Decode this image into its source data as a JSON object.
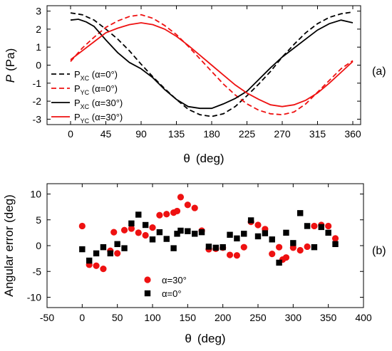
{
  "chart_data": [
    {
      "type": "line",
      "panel_label": "(a)",
      "ylabel_italic": "P",
      "ylabel_rest": "(Pa)",
      "xlabel_sym": "θ",
      "xlabel_unit": "(deg)",
      "xlim": [
        -30,
        370
      ],
      "ylim": [
        -3.3,
        3.3
      ],
      "xticks": [
        "0",
        "45",
        "90",
        "135",
        "180",
        "225",
        "270",
        "315",
        "360"
      ],
      "yticks": [
        "-3",
        "-2",
        "-1",
        "0",
        "1",
        "2",
        "3"
      ],
      "legend_position": "left",
      "series": [
        {
          "name_main": "P",
          "name_sub": "XC",
          "name_rest": " (α=0°)",
          "color": "#000000",
          "dash": true,
          "x": [
            0,
            15,
            30,
            45,
            60,
            75,
            90,
            105,
            120,
            135,
            150,
            165,
            180,
            195,
            210,
            225,
            240,
            255,
            270,
            285,
            300,
            315,
            330,
            345,
            360
          ],
          "y": [
            2.9,
            2.8,
            2.5,
            2.0,
            1.45,
            0.8,
            0.05,
            -0.65,
            -1.3,
            -1.9,
            -2.45,
            -2.75,
            -2.85,
            -2.7,
            -2.3,
            -1.7,
            -1.05,
            -0.35,
            0.45,
            1.15,
            1.8,
            2.3,
            2.65,
            2.85,
            2.95
          ]
        },
        {
          "name_main": "P",
          "name_sub": "YC",
          "name_rest": " (α=0°)",
          "color": "#ee1111",
          "dash": true,
          "x": [
            0,
            15,
            30,
            45,
            60,
            75,
            90,
            105,
            120,
            135,
            150,
            165,
            180,
            195,
            210,
            225,
            240,
            255,
            270,
            285,
            300,
            315,
            330,
            345,
            360
          ],
          "y": [
            0.2,
            0.95,
            1.55,
            2.1,
            2.45,
            2.7,
            2.8,
            2.6,
            2.2,
            1.7,
            1.05,
            0.35,
            -0.35,
            -1.05,
            -1.65,
            -2.15,
            -2.5,
            -2.7,
            -2.75,
            -2.6,
            -2.15,
            -1.5,
            -0.85,
            -0.2,
            0.25
          ]
        },
        {
          "name_main": "P",
          "name_sub": "XC",
          "name_rest": " (α=30°)",
          "color": "#000000",
          "dash": false,
          "x": [
            0,
            10,
            20,
            30,
            45,
            60,
            75,
            90,
            105,
            120,
            135,
            150,
            165,
            180,
            195,
            210,
            225,
            240,
            255,
            270,
            285,
            300,
            315,
            330,
            345,
            360
          ],
          "y": [
            2.5,
            2.55,
            2.4,
            2.15,
            1.4,
            0.7,
            0.15,
            -0.2,
            -0.7,
            -1.35,
            -1.9,
            -2.3,
            -2.4,
            -2.4,
            -2.15,
            -1.85,
            -1.45,
            -0.8,
            -0.15,
            0.45,
            0.95,
            1.45,
            1.95,
            2.3,
            2.5,
            2.35
          ]
        },
        {
          "name_main": "P",
          "name_sub": "YC",
          "name_rest": " (α=30°)",
          "color": "#ee1111",
          "dash": false,
          "x": [
            0,
            15,
            30,
            45,
            60,
            75,
            90,
            105,
            120,
            135,
            150,
            165,
            180,
            195,
            210,
            225,
            240,
            255,
            270,
            285,
            300,
            315,
            330,
            345,
            360
          ],
          "y": [
            0.3,
            0.8,
            1.3,
            1.8,
            2.05,
            2.25,
            2.35,
            2.25,
            2.0,
            1.6,
            1.1,
            0.55,
            0.0,
            -0.55,
            -1.1,
            -1.55,
            -1.9,
            -2.2,
            -2.3,
            -2.2,
            -1.95,
            -1.55,
            -1.0,
            -0.4,
            0.2
          ]
        }
      ]
    },
    {
      "type": "scatter",
      "panel_label": "(b)",
      "ylabel": "Angular error (deg)",
      "xlabel_sym": "θ",
      "xlabel_unit": "(deg)",
      "xlim": [
        -50,
        400
      ],
      "ylim": [
        -12,
        12
      ],
      "xticks": [
        "-50",
        "0",
        "50",
        "100",
        "150",
        "200",
        "250",
        "300",
        "350",
        "400"
      ],
      "yticks": [
        "-10",
        "-5",
        "0",
        "5",
        "10"
      ],
      "legend_position": "bottom-left",
      "series": [
        {
          "name": "α=30°",
          "marker": "circle",
          "color": "#ee1111",
          "x": [
            0,
            10,
            20,
            30,
            40,
            45,
            50,
            60,
            70,
            80,
            90,
            100,
            110,
            120,
            130,
            135,
            140,
            150,
            160,
            170,
            180,
            190,
            200,
            210,
            220,
            230,
            240,
            250,
            260,
            270,
            280,
            285,
            290,
            300,
            310,
            320,
            330,
            340,
            350,
            360
          ],
          "y": [
            3.8,
            -3.7,
            -3.9,
            -4.5,
            -1.0,
            2.6,
            -1.5,
            3.0,
            3.3,
            2.5,
            2.0,
            3.5,
            5.9,
            6.1,
            6.4,
            6.7,
            9.4,
            7.9,
            7.3,
            2.9,
            -0.7,
            -0.6,
            -0.4,
            -1.8,
            -1.9,
            -0.3,
            4.6,
            4.0,
            3.2,
            -1.6,
            -0.3,
            -2.7,
            -2.3,
            -0.4,
            -0.9,
            -0.2,
            3.8,
            4.0,
            3.8,
            1.4
          ]
        },
        {
          "name": "α=0°",
          "marker": "square",
          "color": "#000000",
          "x": [
            0,
            10,
            20,
            30,
            40,
            50,
            60,
            70,
            80,
            90,
            100,
            110,
            120,
            130,
            135,
            140,
            150,
            160,
            170,
            180,
            190,
            200,
            210,
            220,
            230,
            240,
            250,
            260,
            270,
            280,
            290,
            300,
            310,
            320,
            330,
            340,
            350,
            360
          ],
          "y": [
            -0.7,
            -2.9,
            -1.5,
            -0.3,
            -1.5,
            0.3,
            -0.5,
            4.3,
            6.0,
            4.0,
            1.2,
            2.6,
            1.3,
            -0.5,
            2.3,
            2.9,
            2.8,
            2.3,
            2.6,
            -0.2,
            -0.4,
            -0.3,
            2.1,
            1.4,
            2.3,
            4.9,
            1.8,
            2.4,
            1.2,
            -3.3,
            2.5,
            0.5,
            6.3,
            3.8,
            -0.3,
            3.6,
            2.5,
            0.3
          ]
        }
      ]
    }
  ]
}
